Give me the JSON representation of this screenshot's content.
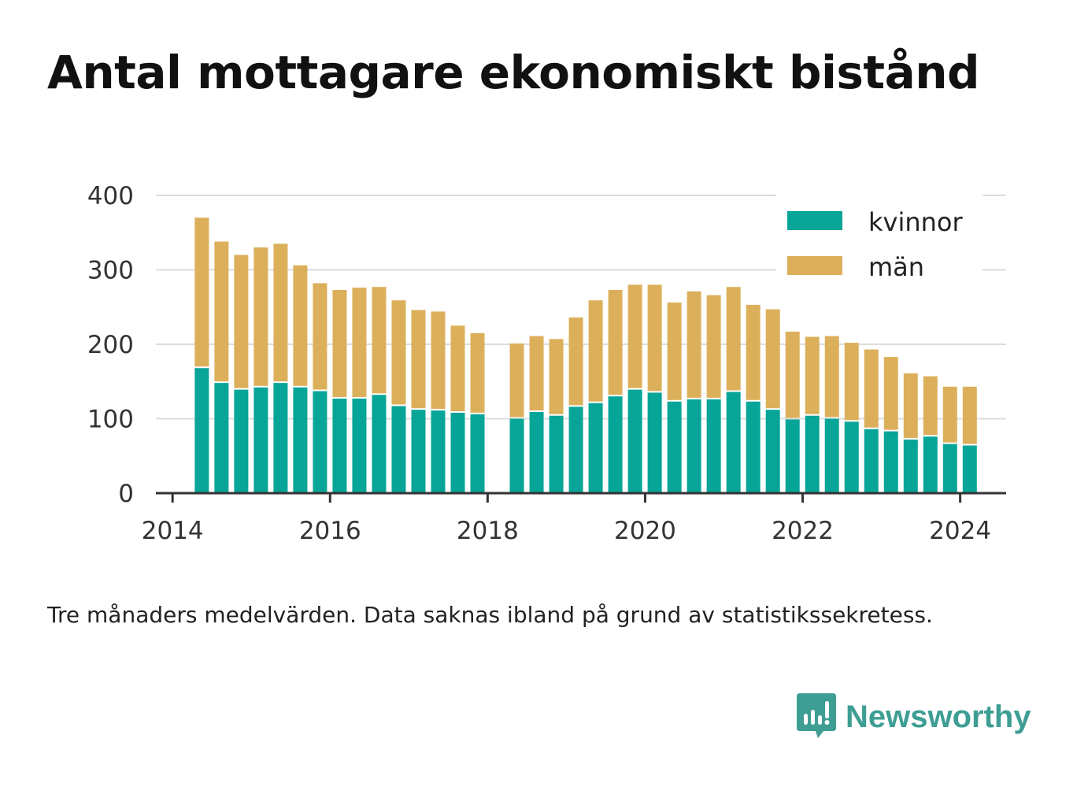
{
  "title": "Antal mottagare ekonomiskt bistånd",
  "note": "Tre månaders medelvärden. Data saknas ibland på grund av statistikssekretess.",
  "brand": {
    "name": "Newsworthy",
    "logo_icon": "newsworthy-bar-chart-icon"
  },
  "colors": {
    "kvinnor": "#06a597",
    "man": "#dcb05b",
    "grid": "#dddddd",
    "axis": "#333333",
    "brand": "#3e9e94"
  },
  "chart_data": {
    "type": "bar",
    "stacked": true,
    "x_ticks": [
      "2014",
      "2016",
      "2018",
      "2020",
      "2022",
      "2024"
    ],
    "y_ticks": [
      "0",
      "100",
      "200",
      "300",
      "400"
    ],
    "ylim": [
      0,
      400
    ],
    "xlim": [
      "2013-10-15",
      "2024-08-01"
    ],
    "grid": "horizontal",
    "legend_position": "top-right",
    "x": [
      "2014-05",
      "2014-08",
      "2014-11",
      "2015-02",
      "2015-05",
      "2015-08",
      "2015-11",
      "2016-02",
      "2016-05",
      "2016-08",
      "2016-11",
      "2017-02",
      "2017-05",
      "2017-08",
      "2017-11",
      "2018-05",
      "2018-08",
      "2018-11",
      "2019-02",
      "2019-05",
      "2019-08",
      "2019-11",
      "2020-02",
      "2020-05",
      "2020-08",
      "2020-11",
      "2021-02",
      "2021-05",
      "2021-08",
      "2021-11",
      "2022-02",
      "2022-05",
      "2022-08",
      "2022-11",
      "2023-02",
      "2023-05",
      "2023-08",
      "2023-11",
      "2024-02"
    ],
    "series": [
      {
        "name": "kvinnor",
        "values": [
          168,
          148,
          139,
          142,
          148,
          142,
          137,
          127,
          127,
          132,
          117,
          112,
          111,
          108,
          106,
          100,
          109,
          104,
          116,
          121,
          130,
          139,
          135,
          123,
          126,
          126,
          136,
          123,
          112,
          99,
          104,
          100,
          96,
          86,
          83,
          72,
          76,
          66,
          64
        ]
      },
      {
        "name": "män",
        "values": [
          202,
          190,
          181,
          188,
          187,
          164,
          145,
          146,
          149,
          145,
          142,
          134,
          133,
          117,
          109,
          101,
          102,
          103,
          120,
          138,
          143,
          141,
          145,
          133,
          145,
          140,
          141,
          130,
          135,
          118,
          106,
          111,
          106,
          107,
          100,
          89,
          81,
          77,
          79
        ]
      }
    ]
  }
}
